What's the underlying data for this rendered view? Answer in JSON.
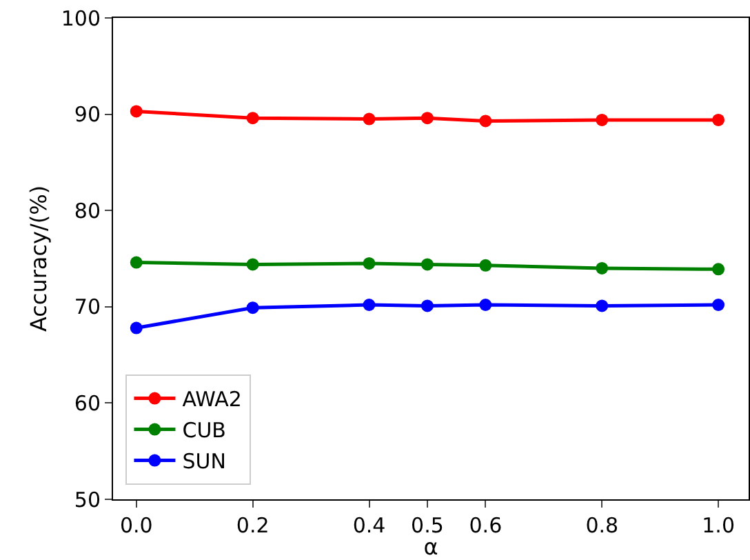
{
  "chart_data": {
    "type": "line",
    "xlabel": "α",
    "ylabel": "Accuracy/(%)",
    "x": [
      0.0,
      0.2,
      0.4,
      0.5,
      0.6,
      0.8,
      1.0
    ],
    "series": [
      {
        "name": "AWA2",
        "color": "#ff0000",
        "values": [
          90.3,
          89.6,
          89.5,
          89.6,
          89.3,
          89.4,
          89.4
        ]
      },
      {
        "name": "CUB",
        "color": "#008000",
        "values": [
          74.6,
          74.4,
          74.5,
          74.4,
          74.3,
          74.0,
          73.9
        ]
      },
      {
        "name": "SUN",
        "color": "#0000ff",
        "values": [
          67.8,
          69.9,
          70.2,
          70.1,
          70.2,
          70.1,
          70.2
        ]
      }
    ],
    "xlim": [
      -0.04,
      1.052
    ],
    "ylim": [
      50,
      100
    ],
    "xticks": [
      {
        "value": 0.0,
        "label": "0.0"
      },
      {
        "value": 0.2,
        "label": "0.2"
      },
      {
        "value": 0.4,
        "label": "0.4"
      },
      {
        "value": 0.5,
        "label": "0.5"
      },
      {
        "value": 0.6,
        "label": "0.6"
      },
      {
        "value": 0.8,
        "label": "0.8"
      },
      {
        "value": 1.0,
        "label": "1.0"
      }
    ],
    "yticks": [
      50,
      60,
      70,
      80,
      90,
      100
    ],
    "legend": "bottom left",
    "marker": "circle",
    "line_style": "solid"
  }
}
